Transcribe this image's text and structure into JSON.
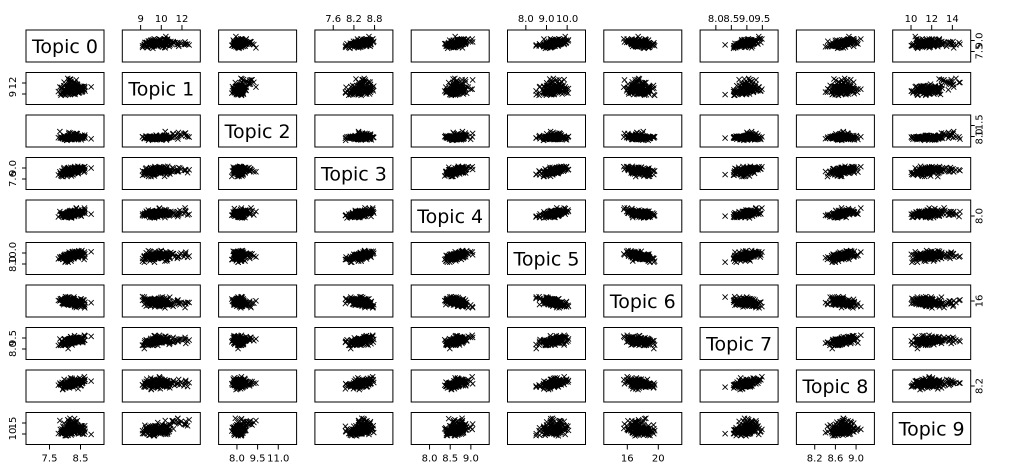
{
  "chart_data": {
    "type": "scatter",
    "variables": [
      {
        "name": "Topic 0",
        "range": [
          7.2,
          9.0
        ]
      },
      {
        "name": "Topic 1",
        "range": [
          8.2,
          12.9
        ]
      },
      {
        "name": "Topic 2",
        "range": [
          7.5,
          11.8
        ]
      },
      {
        "name": "Topic 3",
        "range": [
          7.4,
          8.95
        ]
      },
      {
        "name": "Topic 4",
        "range": [
          7.5,
          9.6
        ]
      },
      {
        "name": "Topic 5",
        "range": [
          7.6,
          10.2
        ]
      },
      {
        "name": "Topic 6",
        "range": [
          13.8,
          23.2
        ]
      },
      {
        "name": "Topic 7",
        "range": [
          7.8,
          9.6
        ]
      },
      {
        "name": "Topic 8",
        "range": [
          7.9,
          9.5
        ]
      },
      {
        "name": "Topic 9",
        "range": [
          8.5,
          15.3
        ]
      }
    ],
    "top_ticks": {
      "1": [
        "9",
        "10",
        "12"
      ],
      "3": [
        "7.6",
        "8.2",
        "8.8"
      ],
      "5": [
        "8.0",
        "9.0",
        "10.0"
      ],
      "7": [
        "8.0",
        "8.5",
        "9.0",
        "9.5"
      ],
      "9": [
        "10",
        "12",
        "14"
      ]
    },
    "bottom_ticks": {
      "0": [
        "7.5",
        "8.5"
      ],
      "2": [
        "8.0",
        "9.5",
        "11.0"
      ],
      "4": [
        "8.0",
        "8.5",
        "9.0"
      ],
      "6": [
        "16",
        "20"
      ],
      "8": [
        "8.2",
        "8.6",
        "9.0"
      ]
    },
    "left_ticks": {
      "1": [
        "9",
        "12"
      ],
      "3": [
        "7.6",
        "9.0"
      ],
      "5": [
        "8.0",
        "10.0"
      ],
      "7": [
        "8.0",
        "9.5"
      ],
      "9": [
        "10",
        "15"
      ]
    },
    "right_ticks": {
      "0": [
        "7.5",
        "9.0"
      ],
      "2": [
        "8.0",
        "11.5"
      ],
      "4": [
        "8.0"
      ],
      "6": [
        "16"
      ],
      "8": [
        "8.2"
      ]
    },
    "marker": "x",
    "grid": false,
    "legend": "none"
  }
}
